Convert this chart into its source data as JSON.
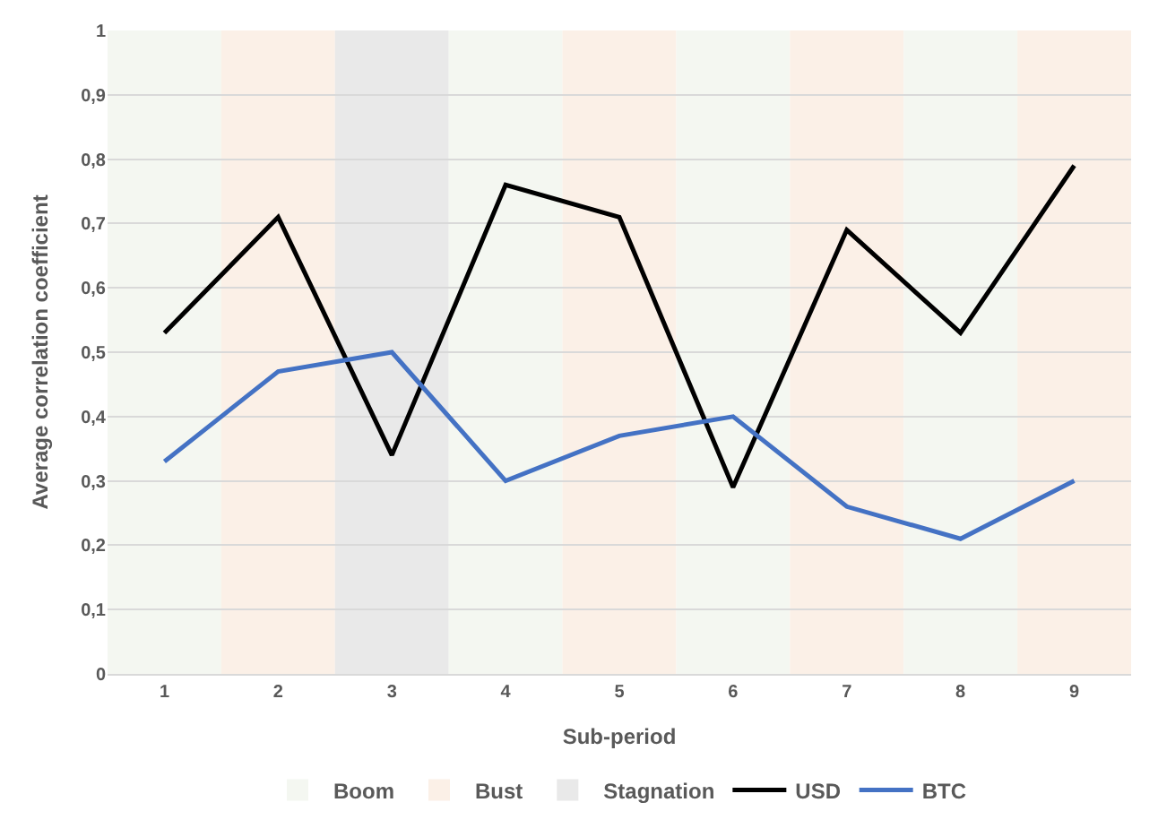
{
  "chart_data": {
    "type": "line",
    "xlabel": "Sub-period",
    "ylabel": "Average correlation coefficient",
    "categories": [
      "1",
      "2",
      "3",
      "4",
      "5",
      "6",
      "7",
      "8",
      "9"
    ],
    "series": [
      {
        "name": "USD",
        "color": "#000000",
        "values": [
          0.53,
          0.71,
          0.34,
          0.76,
          0.71,
          0.29,
          0.69,
          0.53,
          0.79
        ]
      },
      {
        "name": "BTC",
        "color": "#4472c4",
        "values": [
          0.33,
          0.47,
          0.5,
          0.3,
          0.37,
          0.4,
          0.26,
          0.21,
          0.3
        ]
      }
    ],
    "ylim": [
      0,
      1
    ],
    "yticks": [
      0,
      {
        "value": 0.1,
        "label": "0,1"
      },
      {
        "value": 0.2,
        "label": "0,2"
      },
      {
        "value": 0.3,
        "label": "0,3"
      },
      {
        "value": 0.4,
        "label": "0,4"
      },
      {
        "value": 0.5,
        "label": "0,5"
      },
      {
        "value": 0.6,
        "label": "0,6"
      },
      {
        "value": 0.7,
        "label": "0,7"
      },
      {
        "value": 0.8,
        "label": "0,8"
      },
      {
        "value": 0.9,
        "label": "0,9"
      },
      1
    ],
    "bands": [
      {
        "axis": "x",
        "from": "1",
        "to": "1",
        "label": "Boom",
        "color": "#f4f7f1"
      },
      {
        "axis": "x",
        "from": "2",
        "to": "2",
        "label": "Bust",
        "color": "#fbf0e7"
      },
      {
        "axis": "x",
        "from": "3",
        "to": "3",
        "label": "Stagnation",
        "color": "#e9e9e9"
      },
      {
        "axis": "x",
        "from": "4",
        "to": "4",
        "color": "#f4f7f1"
      },
      {
        "axis": "x",
        "from": "5",
        "to": "5",
        "color": "#fbf0e7"
      },
      {
        "axis": "x",
        "from": "6",
        "to": "6",
        "color": "#f4f7f1"
      },
      {
        "axis": "x",
        "from": "7",
        "to": "7",
        "color": "#fbf0e7"
      },
      {
        "axis": "x",
        "from": "8",
        "to": "8",
        "color": "#f4f7f1"
      },
      {
        "axis": "x",
        "from": "9",
        "to": "9",
        "color": "#fbf0e7"
      }
    ],
    "grid": "y",
    "legend": "bottom",
    "marker": "none",
    "line_style": "solid"
  }
}
